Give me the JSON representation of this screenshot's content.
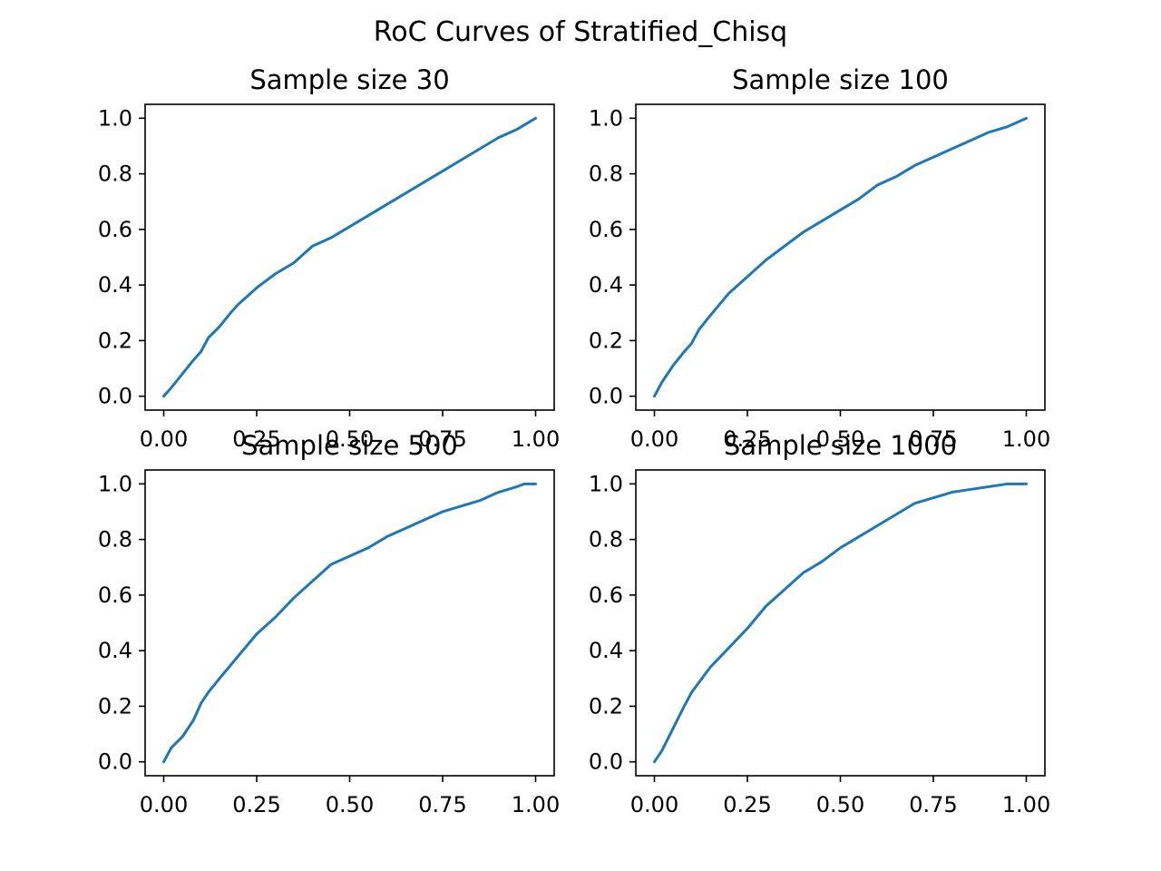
{
  "figure_title": "RoC Curves of Stratified_Chisq",
  "colors": {
    "line": "#1f77b4",
    "axes": "#000000",
    "background": "#ffffff"
  },
  "chart_data": [
    {
      "type": "line",
      "title": "Sample size 30",
      "xlabel": "",
      "ylabel": "",
      "xlim": [
        -0.05,
        1.05
      ],
      "ylim": [
        -0.05,
        1.05
      ],
      "xticks": [
        "0.00",
        "0.25",
        "0.50",
        "0.75",
        "1.00"
      ],
      "yticks": [
        "0.0",
        "0.2",
        "0.4",
        "0.6",
        "0.8",
        "1.0"
      ],
      "grid": false,
      "series": [
        {
          "x": [
            0,
            0.02,
            0.05,
            0.08,
            0.1,
            0.12,
            0.15,
            0.18,
            0.2,
            0.25,
            0.3,
            0.35,
            0.4,
            0.45,
            0.5,
            0.55,
            0.6,
            0.65,
            0.7,
            0.75,
            0.8,
            0.85,
            0.9,
            0.95,
            1.0
          ],
          "y": [
            0,
            0.03,
            0.08,
            0.13,
            0.16,
            0.21,
            0.25,
            0.3,
            0.33,
            0.39,
            0.44,
            0.48,
            0.54,
            0.57,
            0.61,
            0.65,
            0.69,
            0.73,
            0.77,
            0.81,
            0.85,
            0.89,
            0.93,
            0.96,
            1.0
          ]
        }
      ]
    },
    {
      "type": "line",
      "title": "Sample size 100",
      "xlabel": "",
      "ylabel": "",
      "xlim": [
        -0.05,
        1.05
      ],
      "ylim": [
        -0.05,
        1.05
      ],
      "xticks": [
        "0.00",
        "0.25",
        "0.50",
        "0.75",
        "1.00"
      ],
      "yticks": [
        "0.0",
        "0.2",
        "0.4",
        "0.6",
        "0.8",
        "1.0"
      ],
      "grid": false,
      "series": [
        {
          "x": [
            0,
            0.02,
            0.05,
            0.08,
            0.1,
            0.12,
            0.15,
            0.2,
            0.25,
            0.3,
            0.35,
            0.4,
            0.45,
            0.5,
            0.55,
            0.6,
            0.65,
            0.7,
            0.75,
            0.8,
            0.85,
            0.9,
            0.95,
            1.0
          ],
          "y": [
            0,
            0.05,
            0.11,
            0.16,
            0.19,
            0.24,
            0.29,
            0.37,
            0.43,
            0.49,
            0.54,
            0.59,
            0.63,
            0.67,
            0.71,
            0.76,
            0.79,
            0.83,
            0.86,
            0.89,
            0.92,
            0.95,
            0.97,
            1.0
          ]
        }
      ]
    },
    {
      "type": "line",
      "title": "Sample size 500",
      "xlabel": "",
      "ylabel": "",
      "xlim": [
        -0.05,
        1.05
      ],
      "ylim": [
        -0.05,
        1.05
      ],
      "xticks": [
        "0.00",
        "0.25",
        "0.50",
        "0.75",
        "1.00"
      ],
      "yticks": [
        "0.0",
        "0.2",
        "0.4",
        "0.6",
        "0.8",
        "1.0"
      ],
      "grid": false,
      "series": [
        {
          "x": [
            0,
            0.02,
            0.05,
            0.08,
            0.1,
            0.12,
            0.15,
            0.2,
            0.25,
            0.3,
            0.35,
            0.4,
            0.45,
            0.5,
            0.55,
            0.6,
            0.65,
            0.7,
            0.75,
            0.8,
            0.85,
            0.9,
            0.95,
            0.97,
            1.0
          ],
          "y": [
            0,
            0.05,
            0.09,
            0.15,
            0.21,
            0.25,
            0.3,
            0.38,
            0.46,
            0.52,
            0.59,
            0.65,
            0.71,
            0.74,
            0.77,
            0.81,
            0.84,
            0.87,
            0.9,
            0.92,
            0.94,
            0.97,
            0.99,
            1.0,
            1.0
          ]
        }
      ]
    },
    {
      "type": "line",
      "title": "Sample size 1000",
      "xlabel": "",
      "ylabel": "",
      "xlim": [
        -0.05,
        1.05
      ],
      "ylim": [
        -0.05,
        1.05
      ],
      "xticks": [
        "0.00",
        "0.25",
        "0.50",
        "0.75",
        "1.00"
      ],
      "yticks": [
        "0.0",
        "0.2",
        "0.4",
        "0.6",
        "0.8",
        "1.0"
      ],
      "grid": false,
      "series": [
        {
          "x": [
            0,
            0.02,
            0.05,
            0.08,
            0.1,
            0.15,
            0.2,
            0.25,
            0.3,
            0.35,
            0.4,
            0.45,
            0.5,
            0.55,
            0.6,
            0.65,
            0.7,
            0.75,
            0.8,
            0.85,
            0.9,
            0.95,
            1.0
          ],
          "y": [
            0,
            0.04,
            0.12,
            0.2,
            0.25,
            0.34,
            0.41,
            0.48,
            0.56,
            0.62,
            0.68,
            0.72,
            0.77,
            0.81,
            0.85,
            0.89,
            0.93,
            0.95,
            0.97,
            0.98,
            0.99,
            1.0,
            1.0
          ]
        }
      ]
    }
  ]
}
